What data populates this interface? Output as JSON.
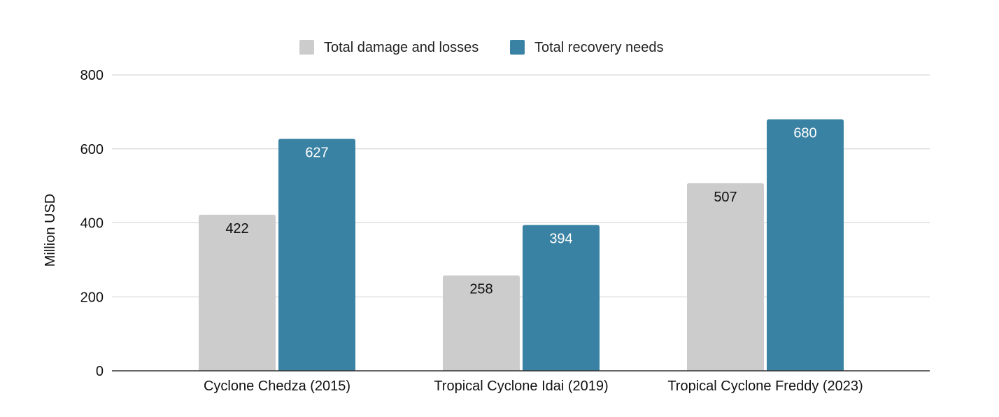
{
  "chart_data": {
    "type": "bar",
    "title": "",
    "xlabel": "",
    "ylabel": "Million USD",
    "ylim": [
      0,
      800
    ],
    "yticks": [
      0,
      200,
      400,
      600,
      800
    ],
    "grid": true,
    "legend_position": "top-center",
    "categories": [
      "Cyclone Chedza (2015)",
      "Tropical Cyclone Idai (2019)",
      "Tropical Cyclone Freddy (2023)"
    ],
    "series": [
      {
        "name": "Total damage and losses",
        "color": "#cccccc",
        "label_color": "#111111",
        "values": [
          422,
          258,
          507
        ]
      },
      {
        "name": "Total recovery needs",
        "color": "#3a82a3",
        "label_color": "#ffffff",
        "values": [
          627,
          394,
          680
        ]
      }
    ]
  }
}
